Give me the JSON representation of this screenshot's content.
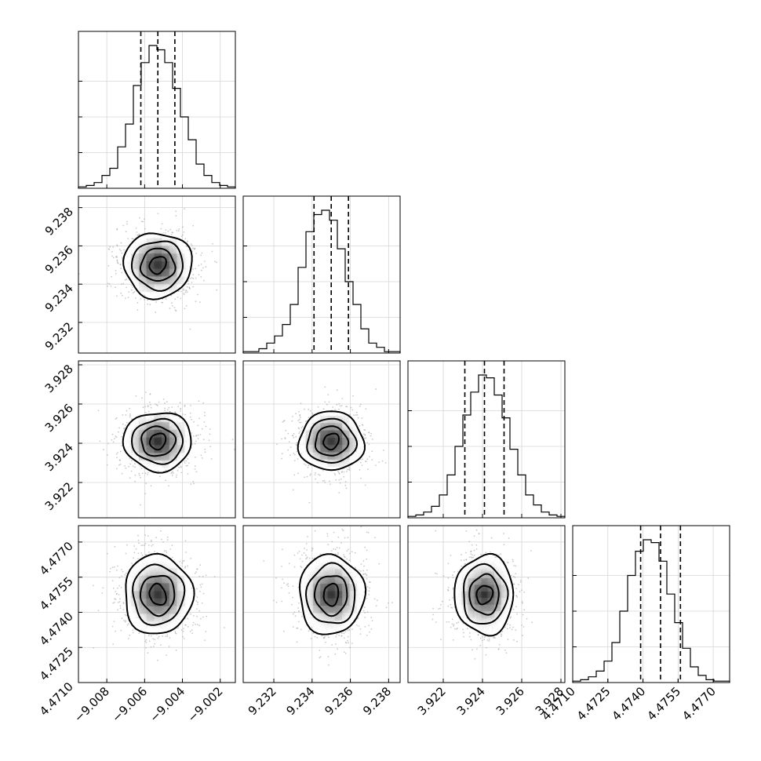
{
  "chart_data": {
    "type": "corner",
    "title": "",
    "parameters": [
      {
        "range": [
          -9.0095,
          -9.0012
        ],
        "ticks": [
          -9.008,
          -9.006,
          -9.004,
          -9.002
        ],
        "tick_labels": [
          "−9.008",
          "−9.006",
          "−9.004",
          "−9.002"
        ],
        "mean": -9.0053,
        "std": 0.0009,
        "quantiles": [
          -9.0062,
          -9.0053,
          -9.0044
        ],
        "hist": [
          0.01,
          0.02,
          0.04,
          0.09,
          0.14,
          0.29,
          0.45,
          0.72,
          0.88,
          1.0,
          0.97,
          0.88,
          0.7,
          0.5,
          0.34,
          0.17,
          0.09,
          0.04,
          0.02,
          0.01
        ]
      },
      {
        "range": [
          9.2304,
          9.2386
        ],
        "ticks": [
          9.232,
          9.234,
          9.236,
          9.238
        ],
        "tick_labels": [
          "9.232",
          "9.234",
          "9.236",
          "9.238"
        ],
        "mean": 9.235,
        "std": 0.00085,
        "quantiles": [
          9.2341,
          9.235,
          9.2359
        ],
        "hist": [
          0.01,
          0.01,
          0.03,
          0.07,
          0.12,
          0.2,
          0.34,
          0.6,
          0.85,
          0.97,
          1.0,
          0.93,
          0.73,
          0.5,
          0.34,
          0.17,
          0.07,
          0.04,
          0.01,
          0.01
        ]
      },
      {
        "range": [
          3.9202,
          3.9282
        ],
        "ticks": [
          3.922,
          3.924,
          3.926,
          3.928
        ],
        "tick_labels": [
          "3.922",
          "3.924",
          "3.926",
          "3.928"
        ],
        "mean": 3.9241,
        "std": 0.00075,
        "quantiles": [
          3.9231,
          3.9241,
          3.9251
        ],
        "hist": [
          0.01,
          0.02,
          0.04,
          0.08,
          0.16,
          0.3,
          0.5,
          0.72,
          0.88,
          1.0,
          0.98,
          0.86,
          0.7,
          0.48,
          0.3,
          0.16,
          0.09,
          0.04,
          0.02,
          0.01
        ]
      },
      {
        "range": [
          4.471,
          4.4777
        ],
        "ticks": [
          4.471,
          4.4725,
          4.474,
          4.4755,
          4.477
        ],
        "tick_labels": [
          "4.4710",
          "4.4725",
          "4.4740",
          "4.4755",
          "4.4770"
        ],
        "mean": 4.47475,
        "std": 0.00085,
        "quantiles": [
          4.4739,
          4.47475,
          4.4756
        ],
        "hist": [
          0.01,
          0.02,
          0.04,
          0.08,
          0.15,
          0.28,
          0.5,
          0.75,
          0.92,
          1.0,
          0.98,
          0.85,
          0.62,
          0.42,
          0.24,
          0.11,
          0.05,
          0.02,
          0.01,
          0.01
        ]
      }
    ],
    "histogram_bins": 20,
    "contour_levels_sigma": [
      0.5,
      1.0,
      1.5,
      2.0
    ],
    "quantile_lines": [
      0.16,
      0.5,
      0.84
    ],
    "grid": true,
    "scatter_color": "#9e9e9e",
    "line_color": "#000000"
  }
}
